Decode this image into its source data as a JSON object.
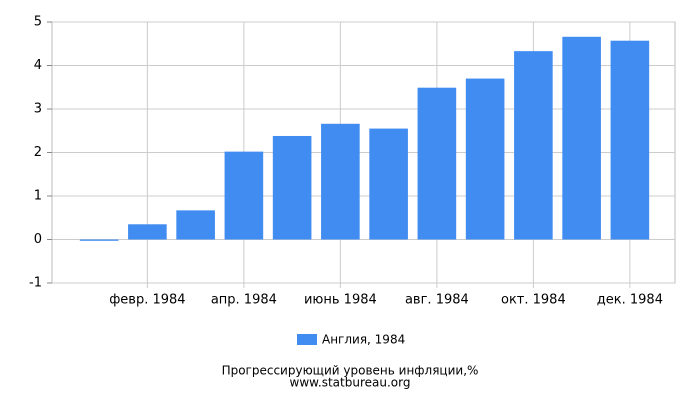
{
  "chart_data": {
    "type": "bar",
    "title": "Прогрессирующий уровень инфляции,%",
    "subtitle": "www.statbureau.org",
    "categories": [
      null,
      "февр. 1984",
      null,
      "апр. 1984",
      null,
      "июнь 1984",
      null,
      "авг. 1984",
      null,
      "окт. 1984",
      null,
      "дек. 1984"
    ],
    "series": [
      {
        "name": "Англия, 1984",
        "color": "#418cf0",
        "values": [
          -0.03,
          0.35,
          0.67,
          2.02,
          2.38,
          2.66,
          2.55,
          3.49,
          3.7,
          4.33,
          4.66,
          4.57
        ]
      }
    ],
    "ylim": [
      -1,
      5
    ],
    "yticks": [
      -1,
      0,
      1,
      2,
      3,
      4,
      5
    ],
    "grid": true,
    "legend": "bottom"
  }
}
